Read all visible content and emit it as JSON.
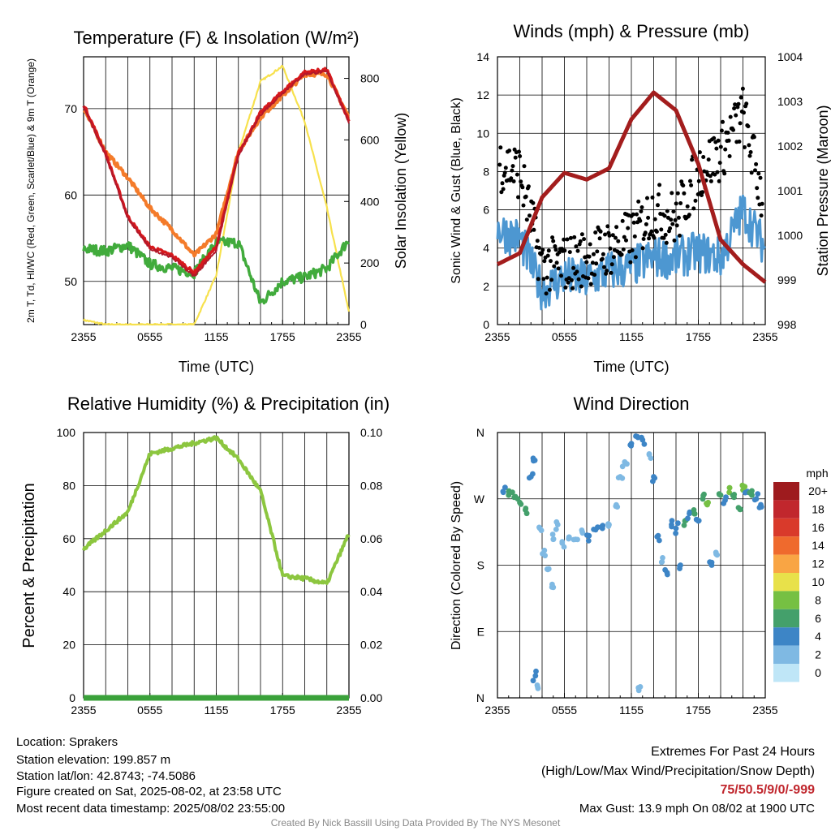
{
  "panels": {
    "temp": {
      "title": "Temperature (F) & Insolation (W/m²)",
      "xlabel": "Time (UTC)",
      "ylabel_left": "2m T, Td, HI/WC (Red, Green, Scarlet/Blue) & 9m T (Orange)",
      "ylabel_right": "Solar Insolation (Yellow)"
    },
    "wind": {
      "title": "Winds (mph) & Pressure (mb)",
      "xlabel": "Time (UTC)",
      "ylabel_left": "Sonic Wind & Gust (Blue, Black)",
      "ylabel_right": "Station Pressure (Maroon)"
    },
    "rh": {
      "title": "Relative Humidity (%) & Precipitation (in)",
      "ylabel_left": "Percent & Precipitation"
    },
    "dir": {
      "title": "Wind Direction",
      "ylabel_left": "Direction (Colored By Speed)",
      "colorbar_title": "mph",
      "colorbar_labels": [
        "20+",
        "18",
        "16",
        "14",
        "12",
        "10",
        "8",
        "6",
        "4",
        "2",
        "0"
      ]
    }
  },
  "info": {
    "location": "Location: Sprakers",
    "elevation": "Station elevation: 199.857 m",
    "latlon": "Station lat/lon: 42.8743; -74.5086",
    "created": "Figure created on Sat, 2025-08-02, at 23:58 UTC",
    "recent": "Most recent data timestamp: 2025/08/02 23:55:00"
  },
  "extremes": {
    "heading": "Extremes For Past 24 Hours",
    "legend": "(High/Low/Max Wind/Precipitation/Snow Depth)",
    "values": "75/50.5/9/0/-999",
    "max_gust": "Max Gust: 13.9 mph On 08/02 at 1900 UTC"
  },
  "credit": "Created By Nick Bassill Using Data Provided By The NYS Mesonet",
  "colors": {
    "temp_red": "#d7191c",
    "temp_orange": "#f47b2a",
    "dewpoint_green": "#41ab3c",
    "hiwc_scarlet": "#b2182b",
    "hiwc_blue": "#4b8fcf",
    "insolation_yellow": "#f7e14d",
    "wind_blue": "#4d97d1",
    "gust_black": "#000000",
    "pressure_maroon": "#a31d1d",
    "rh_green": "#8cc63f",
    "precip_green": "#3aa13a",
    "dir_scale": [
      "#bfe6f7",
      "#7fb9e3",
      "#3d85c6",
      "#44a06b",
      "#76c043",
      "#e8e14a",
      "#f9a544",
      "#ef6a2d",
      "#d93a2b",
      "#c1272d",
      "#9e1b1e"
    ]
  },
  "chart_data": [
    {
      "type": "line",
      "title": "Temperature (F) & Insolation (W/m²)",
      "xlabel": "Time (UTC)",
      "ylabel": "2m T, Td, HI/WC (Red, Green, Scarlet/Blue) & 9m T (Orange)",
      "y2label": "Solar Insolation (Yellow)",
      "xticks": [
        "2355",
        "0555",
        "1155",
        "1755",
        "2355"
      ],
      "x_hours": [
        0,
        2,
        4,
        6,
        8,
        10,
        12,
        14,
        16,
        18,
        20,
        22,
        24
      ],
      "ylim": [
        45,
        76
      ],
      "yticks": [
        50,
        60,
        70
      ],
      "y2lim": [
        0,
        870
      ],
      "y2ticks": [
        0,
        200,
        400,
        600,
        800
      ],
      "grid": true,
      "series": [
        {
          "key": "t2m",
          "axis": "left",
          "color": "#d7191c",
          "values": [
            70.5,
            64.8,
            57.5,
            54.0,
            53.0,
            51.0,
            54.0,
            64.8,
            69.5,
            72.0,
            74.2,
            74.5,
            68.5
          ]
        },
        {
          "key": "t9m",
          "axis": "left",
          "color": "#f47b2a",
          "values": [
            70.0,
            65.0,
            62.0,
            58.5,
            56.0,
            53.0,
            55.5,
            65.0,
            69.0,
            71.5,
            74.0,
            74.0,
            69.0
          ]
        },
        {
          "key": "hiwc",
          "axis": "left",
          "color": "#b2182b",
          "values": [
            70.2,
            64.6,
            57.3,
            53.8,
            52.8,
            50.6,
            53.6,
            64.6,
            69.3,
            71.8,
            74.0,
            74.3,
            68.4
          ]
        },
        {
          "key": "dewpoint",
          "axis": "left",
          "color": "#41ab3c",
          "values": [
            53.8,
            53.5,
            54.2,
            52.0,
            51.5,
            51.0,
            54.5,
            54.5,
            47.5,
            50.0,
            50.5,
            51.5,
            54.8
          ]
        },
        {
          "key": "insolation",
          "axis": "right",
          "color": "#f7e14d",
          "values": [
            15,
            0,
            0,
            0,
            0,
            0,
            160,
            560,
            790,
            840,
            660,
            380,
            40
          ]
        }
      ]
    },
    {
      "type": "line",
      "title": "Winds (mph) & Pressure (mb)",
      "xlabel": "Time (UTC)",
      "ylabel": "Sonic Wind & Gust (Blue, Black)",
      "y2label": "Station Pressure (Maroon)",
      "xticks": [
        "2355",
        "0555",
        "1155",
        "1755",
        "2355"
      ],
      "x_hours": [
        0,
        2,
        4,
        6,
        8,
        10,
        12,
        14,
        16,
        18,
        20,
        22,
        24
      ],
      "ylim": [
        0,
        14
      ],
      "yticks": [
        0,
        2,
        4,
        6,
        8,
        10,
        12,
        14
      ],
      "y2lim": [
        998,
        1004
      ],
      "y2ticks": [
        998,
        999,
        1000,
        1001,
        1002,
        1003,
        1004
      ],
      "grid": true,
      "series": [
        {
          "key": "wind",
          "axis": "left",
          "color": "#4d97d1",
          "values": [
            5.0,
            4.5,
            1.8,
            2.5,
            2.3,
            2.8,
            3.0,
            3.5,
            3.5,
            3.8,
            3.5,
            6.0,
            4.0
          ]
        },
        {
          "key": "gust",
          "axis": "left",
          "color": "#000000",
          "values": [
            8.5,
            8.0,
            3.0,
            3.2,
            3.5,
            4.0,
            4.5,
            6.0,
            5.5,
            8.0,
            9.0,
            11.0,
            6.0
          ]
        },
        {
          "key": "pressure",
          "axis": "right",
          "color": "#a31d1d",
          "values": [
            999.35,
            999.6,
            1000.85,
            1001.4,
            1001.25,
            1001.5,
            1002.6,
            1003.2,
            1002.8,
            1001.6,
            999.9,
            999.35,
            998.95
          ]
        }
      ]
    },
    {
      "type": "line",
      "title": "Relative Humidity (%) & Precipitation (in)",
      "ylabel": "Percent & Precipitation",
      "xticks": [
        "2355",
        "0555",
        "1155",
        "1755",
        "2355"
      ],
      "x_hours": [
        0,
        2,
        4,
        6,
        8,
        10,
        12,
        14,
        16,
        18,
        20,
        22,
        24
      ],
      "ylim": [
        0,
        100
      ],
      "yticks": [
        0,
        20,
        40,
        60,
        80,
        100
      ],
      "y2lim": [
        0,
        0.1
      ],
      "y2ticks": [
        "0.00",
        "0.02",
        "0.04",
        "0.06",
        "0.08",
        "0.10"
      ],
      "grid": true,
      "series": [
        {
          "key": "rh",
          "axis": "left",
          "color": "#8cc63f",
          "values": [
            56,
            63,
            70,
            92,
            94,
            96,
            98,
            90,
            78,
            46,
            45,
            43,
            62
          ]
        },
        {
          "key": "precip",
          "axis": "right",
          "color": "#3aa13a",
          "values": [
            0,
            0,
            0,
            0,
            0,
            0,
            0,
            0,
            0,
            0,
            0,
            0,
            0
          ]
        }
      ]
    },
    {
      "type": "scatter",
      "title": "Wind Direction",
      "ylabel": "Direction (Colored By Speed)",
      "xticks": [
        "2355",
        "0555",
        "1155",
        "1755",
        "2355"
      ],
      "yticks": [
        "N",
        "E",
        "S",
        "W",
        "N"
      ],
      "ylim": [
        0,
        360
      ],
      "color_scale_mph": [
        0,
        2,
        4,
        6,
        8,
        10,
        12,
        14,
        16,
        18,
        20
      ],
      "grid": true,
      "points": [
        {
          "x": 0.5,
          "y": 280,
          "speed": 4
        },
        {
          "x": 1.0,
          "y": 275,
          "speed": 5
        },
        {
          "x": 1.5,
          "y": 272,
          "speed": 6
        },
        {
          "x": 2.0,
          "y": 265,
          "speed": 6
        },
        {
          "x": 2.5,
          "y": 255,
          "speed": 5
        },
        {
          "x": 3.0,
          "y": 300,
          "speed": 4
        },
        {
          "x": 3.2,
          "y": 325,
          "speed": 4
        },
        {
          "x": 3.4,
          "y": 30,
          "speed": 3
        },
        {
          "x": 3.6,
          "y": 15,
          "speed": 2
        },
        {
          "x": 3.8,
          "y": 230,
          "speed": 1
        },
        {
          "x": 4.2,
          "y": 200,
          "speed": 2
        },
        {
          "x": 4.6,
          "y": 175,
          "speed": 2
        },
        {
          "x": 5.0,
          "y": 215,
          "speed": 1
        },
        {
          "x": 5.0,
          "y": 150,
          "speed": 2
        },
        {
          "x": 5.4,
          "y": 235,
          "speed": 2
        },
        {
          "x": 5.8,
          "y": 210,
          "speed": 2
        },
        {
          "x": 6.4,
          "y": 218,
          "speed": 2
        },
        {
          "x": 7.0,
          "y": 215,
          "speed": 2
        },
        {
          "x": 7.6,
          "y": 225,
          "speed": 2
        },
        {
          "x": 8.2,
          "y": 220,
          "speed": 3
        },
        {
          "x": 8.8,
          "y": 228,
          "speed": 3
        },
        {
          "x": 9.4,
          "y": 230,
          "speed": 3
        },
        {
          "x": 10.0,
          "y": 235,
          "speed": 2
        },
        {
          "x": 10.6,
          "y": 260,
          "speed": 2
        },
        {
          "x": 11.0,
          "y": 300,
          "speed": 2
        },
        {
          "x": 11.4,
          "y": 320,
          "speed": 2
        },
        {
          "x": 12.0,
          "y": 345,
          "speed": 3
        },
        {
          "x": 12.4,
          "y": 355,
          "speed": 3
        },
        {
          "x": 12.8,
          "y": 15,
          "speed": 2
        },
        {
          "x": 13.0,
          "y": 350,
          "speed": 3
        },
        {
          "x": 13.6,
          "y": 330,
          "speed": 2
        },
        {
          "x": 14.0,
          "y": 300,
          "speed": 4
        },
        {
          "x": 14.4,
          "y": 220,
          "speed": 3
        },
        {
          "x": 14.8,
          "y": 190,
          "speed": 2
        },
        {
          "x": 15.2,
          "y": 170,
          "speed": 3
        },
        {
          "x": 15.6,
          "y": 235,
          "speed": 4
        },
        {
          "x": 16.0,
          "y": 230,
          "speed": 4
        },
        {
          "x": 16.4,
          "y": 180,
          "speed": 3
        },
        {
          "x": 16.8,
          "y": 240,
          "speed": 6
        },
        {
          "x": 17.2,
          "y": 250,
          "speed": 4
        },
        {
          "x": 17.6,
          "y": 255,
          "speed": 5
        },
        {
          "x": 18.0,
          "y": 240,
          "speed": 4
        },
        {
          "x": 18.4,
          "y": 270,
          "speed": 6
        },
        {
          "x": 18.8,
          "y": 262,
          "speed": 7
        },
        {
          "x": 19.2,
          "y": 180,
          "speed": 3
        },
        {
          "x": 19.6,
          "y": 195,
          "speed": 2
        },
        {
          "x": 20.0,
          "y": 275,
          "speed": 6
        },
        {
          "x": 20.4,
          "y": 268,
          "speed": 4
        },
        {
          "x": 20.8,
          "y": 285,
          "speed": 7
        },
        {
          "x": 21.2,
          "y": 272,
          "speed": 5
        },
        {
          "x": 21.6,
          "y": 258,
          "speed": 6
        },
        {
          "x": 22.0,
          "y": 282,
          "speed": 7
        },
        {
          "x": 22.4,
          "y": 280,
          "speed": 4
        },
        {
          "x": 22.8,
          "y": 275,
          "speed": 5
        },
        {
          "x": 23.2,
          "y": 270,
          "speed": 4
        },
        {
          "x": 23.6,
          "y": 262,
          "speed": 4
        }
      ]
    }
  ]
}
